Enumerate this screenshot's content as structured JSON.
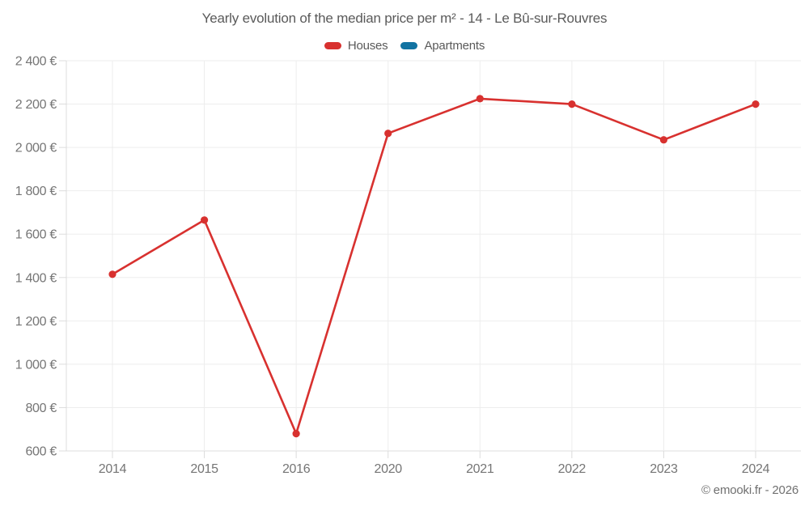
{
  "title": "Yearly evolution of the median price per m² - 14 - Le Bû-sur-Rouvres",
  "footer": "© emooki.fr - 2026",
  "legend": [
    {
      "label": "Houses",
      "color": "#d8312f"
    },
    {
      "label": "Apartments",
      "color": "#1273a2"
    }
  ],
  "colors": {
    "houses_red": "#d8312f",
    "apartments_blue": "#1273a2",
    "grid": "#ededed",
    "axis": "#dcdcdc",
    "tick_label": "#757575",
    "title_text": "#5a5a5a"
  },
  "chart_data": {
    "type": "line",
    "categories": [
      "2014",
      "2015",
      "2016",
      "2020",
      "2021",
      "2022",
      "2023",
      "2024"
    ],
    "series": [
      {
        "name": "Houses",
        "color": "#d8312f",
        "values": [
          1415,
          1665,
          680,
          2065,
          2225,
          2200,
          2035,
          2200
        ]
      },
      {
        "name": "Apartments",
        "color": "#1273a2",
        "values": []
      }
    ],
    "title": "Yearly evolution of the median price per m² - 14 - Le Bû-sur-Rouvres",
    "xlabel": "",
    "ylabel": "",
    "ylim": [
      600,
      2400
    ],
    "ytick_step": 200,
    "y_tick_labels": [
      "600 €",
      "800 €",
      "1 000 €",
      "1 200 €",
      "1 400 €",
      "1 600 €",
      "1 800 €",
      "2 000 €",
      "2 200 €",
      "2 400 €"
    ],
    "grid": true,
    "legend_position": "top"
  }
}
